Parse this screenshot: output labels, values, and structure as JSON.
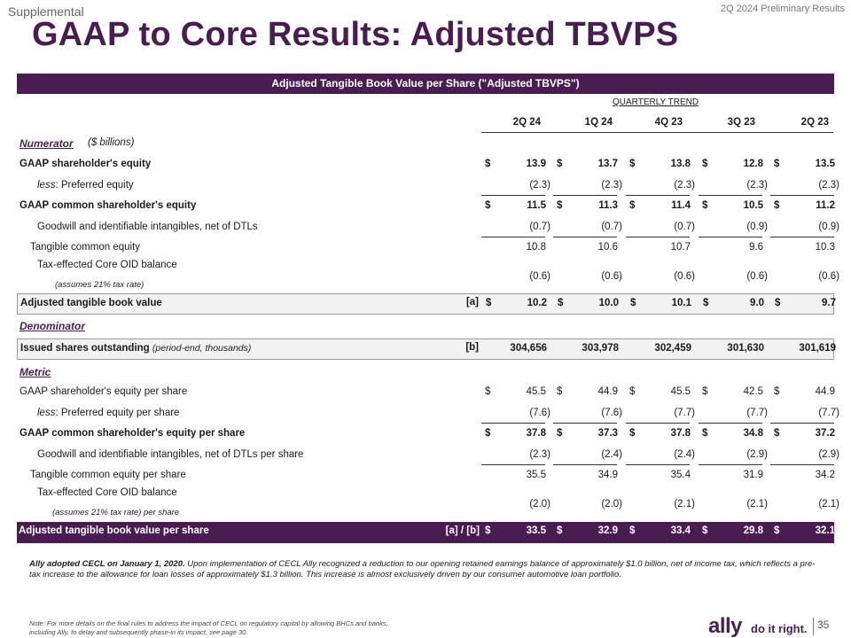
{
  "header": {
    "supplemental": "Supplemental",
    "report": "2Q 2024 Preliminary Results",
    "title": "GAAP to Core Results: Adjusted TBVPS"
  },
  "table": {
    "title": "Adjusted Tangible Book Value per Share (\"Adjusted TBVPS\")",
    "trend_label": "QUARTERLY TREND",
    "columns": [
      "2Q 24",
      "1Q 24",
      "4Q 23",
      "3Q 23",
      "2Q 23"
    ],
    "numerator_label": "Numerator",
    "numerator_unit": "($ billions)",
    "denominator_label": "Denominator",
    "metric_label": "Metric",
    "rows": {
      "gaap_equity": {
        "label": "GAAP shareholder's equity",
        "values": [
          "13.9",
          "13.7",
          "13.8",
          "12.8",
          "13.5"
        ]
      },
      "preferred": {
        "prefix": "less",
        "label": ":  Preferred equity",
        "values": [
          "(2.3)",
          "(2.3)",
          "(2.3)",
          "(2.3)",
          "(2.3)"
        ]
      },
      "gaap_common": {
        "label": "GAAP common shareholder's equity",
        "values": [
          "11.5",
          "11.3",
          "11.4",
          "10.5",
          "11.2"
        ]
      },
      "goodwill": {
        "label": "Goodwill and identifiable intangibles, net of DTLs",
        "values": [
          "(0.7)",
          "(0.7)",
          "(0.7)",
          "(0.9)",
          "(0.9)"
        ]
      },
      "tangible": {
        "label": "Tangible common equity",
        "values": [
          "10.8",
          "10.6",
          "10.7",
          "9.6",
          "10.3"
        ]
      },
      "oid": {
        "label": "Tax-effected Core OID balance",
        "sub": "(assumes 21% tax rate)",
        "values": [
          "(0.6)",
          "(0.6)",
          "(0.6)",
          "(0.6)",
          "(0.6)"
        ]
      },
      "adj_tbv": {
        "label": "Adjusted tangible book value",
        "ref": "[a]",
        "values": [
          "10.2",
          "10.0",
          "10.1",
          "9.0",
          "9.7"
        ]
      },
      "shares": {
        "label": "Issued shares outstanding",
        "suffix": "(period-end, thousands)",
        "ref": "[b]",
        "values": [
          "304,656",
          "303,978",
          "302,459",
          "301,630",
          "301,619"
        ]
      },
      "gaap_eq_ps": {
        "label": "GAAP shareholder's equity per share",
        "values": [
          "45.5",
          "44.9",
          "45.5",
          "42.5",
          "44.9"
        ]
      },
      "pref_ps": {
        "prefix": "less",
        "label": ":  Preferred equity per share",
        "values": [
          "(7.6)",
          "(7.6)",
          "(7.7)",
          "(7.7)",
          "(7.7)"
        ]
      },
      "gaap_common_ps": {
        "label": "GAAP common shareholder's equity per share",
        "values": [
          "37.8",
          "37.3",
          "37.8",
          "34.8",
          "37.2"
        ]
      },
      "goodwill_ps": {
        "label": "Goodwill and identifiable intangibles, net of DTLs per share",
        "values": [
          "(2.3)",
          "(2.4)",
          "(2.4)",
          "(2.9)",
          "(2.9)"
        ]
      },
      "tangible_ps": {
        "label": "Tangible common equity per share",
        "values": [
          "35.5",
          "34.9",
          "35.4",
          "31.9",
          "34.2"
        ]
      },
      "oid_ps": {
        "label": "Tax-effected Core OID balance",
        "sub": "(assumes 21% tax rate) per share",
        "values": [
          "(2.0)",
          "(2.0)",
          "(2.1)",
          "(2.1)",
          "(2.1)"
        ]
      },
      "adj_tbvps": {
        "label": "Adjusted tangible book value per share",
        "ref": "[a] / [b]",
        "values": [
          "33.5",
          "32.9",
          "33.4",
          "29.8",
          "32.1"
        ]
      }
    },
    "currency_symbol": "$"
  },
  "footnote": {
    "lead": "Ally adopted CECL on January 1, 2020.",
    "body": " Upon implementation of CECL Ally recognized a reduction to our opening retained earnings balance of approximately $1.0 billion, net of income tax, which reflects a pre-tax increase to the allowance for loan losses of approximately $1.3 billion. This increase is almost exclusively driven by our consumer automotive loan portfolio."
  },
  "note": "Note: For more details on the final rules to address the impact of CECL on regulatory capital by allowing BHCs and banks, including Ally, to delay and subsequently phase-in its impact, see page 30.",
  "brand": {
    "logo": "ally",
    "tagline": "do it right.",
    "page": "35"
  }
}
